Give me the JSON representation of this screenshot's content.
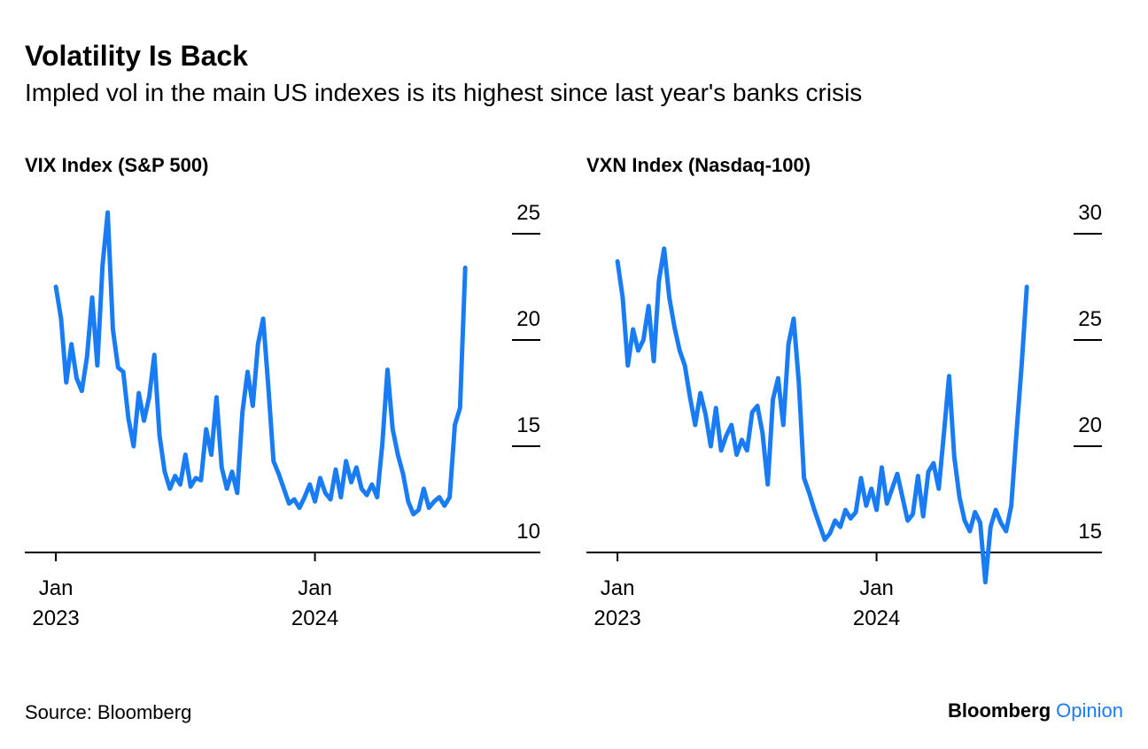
{
  "title": "Volatility Is Back",
  "subtitle": "Impled vol in the main US indexes is its highest since last year's banks crisis",
  "source": "Source: Bloomberg",
  "brand": {
    "name": "Bloomberg",
    "section": "Opinion"
  },
  "chart_data": [
    {
      "type": "line",
      "title": "VIX Index (S&P 500)",
      "x": [
        2023.0,
        2023.02,
        2023.04,
        2023.06,
        2023.08,
        2023.1,
        2023.12,
        2023.14,
        2023.16,
        2023.18,
        2023.2,
        2023.22,
        2023.24,
        2023.26,
        2023.28,
        2023.3,
        2023.32,
        2023.34,
        2023.36,
        2023.38,
        2023.4,
        2023.42,
        2023.44,
        2023.46,
        2023.48,
        2023.5,
        2023.52,
        2023.54,
        2023.56,
        2023.58,
        2023.6,
        2023.62,
        2023.64,
        2023.66,
        2023.68,
        2023.7,
        2023.72,
        2023.74,
        2023.76,
        2023.78,
        2023.8,
        2023.82,
        2023.84,
        2023.86,
        2023.88,
        2023.9,
        2023.92,
        2023.94,
        2023.96,
        2023.98,
        2024.0,
        2024.02,
        2024.04,
        2024.06,
        2024.08,
        2024.1,
        2024.12,
        2024.14,
        2024.16,
        2024.18,
        2024.2,
        2024.22,
        2024.24,
        2024.26,
        2024.28,
        2024.3,
        2024.32,
        2024.34,
        2024.36,
        2024.38,
        2024.4,
        2024.42,
        2024.44,
        2024.46,
        2024.48,
        2024.5,
        2024.52,
        2024.54,
        2024.56,
        2024.58
      ],
      "series": [
        {
          "color": "#1a7cf5",
          "values": [
            22.5,
            21.0,
            18.0,
            19.8,
            18.2,
            17.6,
            19.2,
            22.0,
            18.8,
            23.5,
            26.0,
            20.5,
            18.7,
            18.5,
            16.3,
            15.0,
            17.5,
            16.2,
            17.3,
            19.3,
            15.5,
            13.8,
            13.0,
            13.6,
            13.2,
            14.6,
            13.1,
            13.5,
            13.4,
            15.8,
            14.6,
            17.3,
            14.0,
            13.0,
            13.8,
            12.8,
            16.6,
            18.5,
            16.9,
            19.8,
            21.0,
            17.8,
            14.3,
            13.7,
            13.0,
            12.3,
            12.5,
            12.1,
            12.6,
            13.2,
            12.4,
            13.5,
            12.8,
            12.5,
            13.9,
            12.6,
            14.3,
            13.3,
            14.0,
            13.0,
            12.7,
            13.2,
            12.6,
            15.1,
            18.6,
            15.8,
            14.6,
            13.7,
            12.4,
            11.8,
            12.0,
            13.0,
            12.1,
            12.4,
            12.6,
            12.2,
            12.6,
            16.0,
            16.8,
            23.4
          ]
        }
      ],
      "xlim": [
        2022.88,
        2024.87
      ],
      "xticks": [
        {
          "value": 2023,
          "label": "Jan 2023"
        },
        {
          "value": 2024,
          "label": "Jan 2024"
        }
      ],
      "ylim": [
        8.5,
        26.625
      ],
      "yticks": [
        10,
        15,
        20,
        25
      ]
    },
    {
      "type": "line",
      "title": "VXN Index (Nasdaq-100)",
      "x": [
        2023.0,
        2023.02,
        2023.04,
        2023.06,
        2023.08,
        2023.1,
        2023.12,
        2023.14,
        2023.16,
        2023.18,
        2023.2,
        2023.22,
        2023.24,
        2023.26,
        2023.28,
        2023.3,
        2023.32,
        2023.34,
        2023.36,
        2023.38,
        2023.4,
        2023.42,
        2023.44,
        2023.46,
        2023.48,
        2023.5,
        2023.52,
        2023.54,
        2023.56,
        2023.58,
        2023.6,
        2023.62,
        2023.64,
        2023.66,
        2023.68,
        2023.7,
        2023.72,
        2023.74,
        2023.76,
        2023.78,
        2023.8,
        2023.82,
        2023.84,
        2023.86,
        2023.88,
        2023.9,
        2023.92,
        2023.94,
        2023.96,
        2023.98,
        2024.0,
        2024.02,
        2024.04,
        2024.06,
        2024.08,
        2024.1,
        2024.12,
        2024.14,
        2024.16,
        2024.18,
        2024.2,
        2024.22,
        2024.24,
        2024.26,
        2024.28,
        2024.3,
        2024.32,
        2024.34,
        2024.36,
        2024.38,
        2024.4,
        2024.42,
        2024.44,
        2024.46,
        2024.48,
        2024.5,
        2024.52,
        2024.54,
        2024.56,
        2024.58
      ],
      "series": [
        {
          "color": "#1a7cf5",
          "values": [
            28.7,
            27.0,
            23.8,
            25.5,
            24.5,
            25.0,
            26.6,
            24.0,
            27.8,
            29.3,
            27.0,
            25.6,
            24.5,
            23.8,
            22.3,
            21.0,
            22.5,
            21.5,
            20.0,
            21.8,
            19.8,
            20.5,
            21.0,
            19.6,
            20.3,
            19.8,
            21.6,
            21.9,
            20.6,
            18.2,
            22.2,
            23.2,
            21.0,
            24.8,
            26.0,
            23.0,
            18.5,
            17.8,
            17.0,
            16.3,
            15.6,
            15.9,
            16.5,
            16.2,
            17.0,
            16.6,
            16.9,
            18.5,
            17.2,
            18.0,
            17.0,
            19.0,
            17.3,
            18.0,
            18.7,
            17.6,
            16.5,
            16.8,
            18.6,
            16.7,
            18.8,
            19.2,
            18.0,
            20.6,
            23.3,
            19.5,
            17.6,
            16.5,
            16.0,
            16.9,
            16.4,
            13.6,
            16.2,
            17.0,
            16.4,
            16.0,
            17.2,
            20.6,
            23.8,
            27.5
          ]
        }
      ],
      "xlim": [
        2022.88,
        2024.87
      ],
      "xticks": [
        {
          "value": 2023,
          "label": "Jan 2023"
        },
        {
          "value": 2024,
          "label": "Jan 2024"
        }
      ],
      "ylim": [
        13.5,
        31.625
      ],
      "yticks": [
        15,
        20,
        25,
        30
      ]
    }
  ]
}
